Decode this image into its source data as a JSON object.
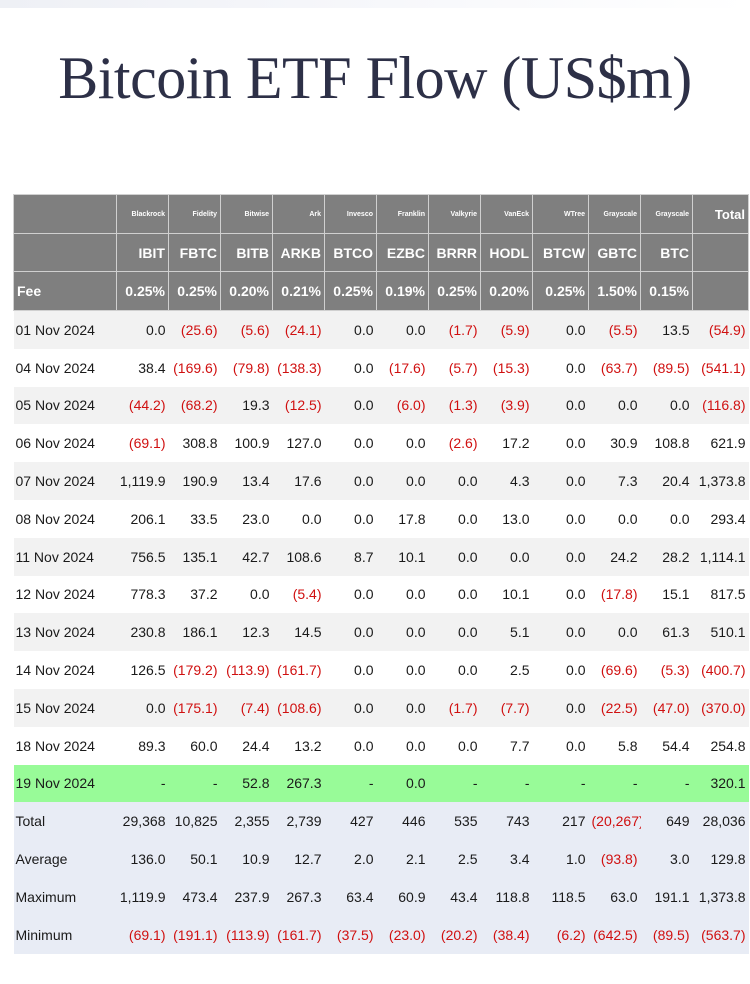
{
  "title": "Bitcoin ETF Flow (US$m)",
  "issuers": [
    "Blackrock",
    "Fidelity",
    "Bitwise",
    "Ark",
    "Invesco",
    "Franklin",
    "Valkyrie",
    "VanEck",
    "WTree",
    "Grayscale",
    "Grayscale"
  ],
  "total_header": "Total",
  "tickers": [
    "IBIT",
    "FBTC",
    "BITB",
    "ARKB",
    "BTCO",
    "EZBC",
    "BRRR",
    "HODL",
    "BTCW",
    "GBTC",
    "BTC"
  ],
  "fee_label": "Fee",
  "fees": [
    "0.25%",
    "0.25%",
    "0.20%",
    "0.21%",
    "0.25%",
    "0.19%",
    "0.25%",
    "0.20%",
    "0.25%",
    "1.50%",
    "0.15%"
  ],
  "rows": [
    {
      "label": "01 Nov 2024",
      "values": [
        "0.0",
        "(25.6)",
        "(5.6)",
        "(24.1)",
        "0.0",
        "0.0",
        "(1.7)",
        "(5.9)",
        "0.0",
        "(5.5)",
        "13.5",
        "(54.9)"
      ]
    },
    {
      "label": "04 Nov 2024",
      "values": [
        "38.4",
        "(169.6)",
        "(79.8)",
        "(138.3)",
        "0.0",
        "(17.6)",
        "(5.7)",
        "(15.3)",
        "0.0",
        "(63.7)",
        "(89.5)",
        "(541.1)"
      ]
    },
    {
      "label": "05 Nov 2024",
      "values": [
        "(44.2)",
        "(68.2)",
        "19.3",
        "(12.5)",
        "0.0",
        "(6.0)",
        "(1.3)",
        "(3.9)",
        "0.0",
        "0.0",
        "0.0",
        "(116.8)"
      ]
    },
    {
      "label": "06 Nov 2024",
      "values": [
        "(69.1)",
        "308.8",
        "100.9",
        "127.0",
        "0.0",
        "0.0",
        "(2.6)",
        "17.2",
        "0.0",
        "30.9",
        "108.8",
        "621.9"
      ]
    },
    {
      "label": "07 Nov 2024",
      "values": [
        "1,119.9",
        "190.9",
        "13.4",
        "17.6",
        "0.0",
        "0.0",
        "0.0",
        "4.3",
        "0.0",
        "7.3",
        "20.4",
        "1,373.8"
      ]
    },
    {
      "label": "08 Nov 2024",
      "values": [
        "206.1",
        "33.5",
        "23.0",
        "0.0",
        "0.0",
        "17.8",
        "0.0",
        "13.0",
        "0.0",
        "0.0",
        "0.0",
        "293.4"
      ]
    },
    {
      "label": "11 Nov 2024",
      "values": [
        "756.5",
        "135.1",
        "42.7",
        "108.6",
        "8.7",
        "10.1",
        "0.0",
        "0.0",
        "0.0",
        "24.2",
        "28.2",
        "1,114.1"
      ]
    },
    {
      "label": "12 Nov 2024",
      "values": [
        "778.3",
        "37.2",
        "0.0",
        "(5.4)",
        "0.0",
        "0.0",
        "0.0",
        "10.1",
        "0.0",
        "(17.8)",
        "15.1",
        "817.5"
      ]
    },
    {
      "label": "13 Nov 2024",
      "values": [
        "230.8",
        "186.1",
        "12.3",
        "14.5",
        "0.0",
        "0.0",
        "0.0",
        "5.1",
        "0.0",
        "0.0",
        "61.3",
        "510.1"
      ]
    },
    {
      "label": "14 Nov 2024",
      "values": [
        "126.5",
        "(179.2)",
        "(113.9)",
        "(161.7)",
        "0.0",
        "0.0",
        "0.0",
        "2.5",
        "0.0",
        "(69.6)",
        "(5.3)",
        "(400.7)"
      ]
    },
    {
      "label": "15 Nov 2024",
      "values": [
        "0.0",
        "(175.1)",
        "(7.4)",
        "(108.6)",
        "0.0",
        "0.0",
        "(1.7)",
        "(7.7)",
        "0.0",
        "(22.5)",
        "(47.0)",
        "(370.0)"
      ]
    },
    {
      "label": "18 Nov 2024",
      "values": [
        "89.3",
        "60.0",
        "24.4",
        "13.2",
        "0.0",
        "0.0",
        "0.0",
        "7.7",
        "0.0",
        "5.8",
        "54.4",
        "254.8"
      ]
    },
    {
      "label": "19 Nov 2024",
      "values": [
        "-",
        "-",
        "52.8",
        "267.3",
        "-",
        "0.0",
        "-",
        "-",
        "-",
        "-",
        "-",
        "320.1"
      ],
      "highlight": true
    }
  ],
  "stats": [
    {
      "label": "Total",
      "values": [
        "29,368",
        "10,825",
        "2,355",
        "2,739",
        "427",
        "446",
        "535",
        "743",
        "217",
        "(20,267)",
        "649",
        "28,036"
      ]
    },
    {
      "label": "Average",
      "values": [
        "136.0",
        "50.1",
        "10.9",
        "12.7",
        "2.0",
        "2.1",
        "2.5",
        "3.4",
        "1.0",
        "(93.8)",
        "3.0",
        "129.8"
      ]
    },
    {
      "label": "Maximum",
      "values": [
        "1,119.9",
        "473.4",
        "237.9",
        "267.3",
        "63.4",
        "60.9",
        "43.4",
        "118.8",
        "118.5",
        "63.0",
        "191.1",
        "1,373.8"
      ]
    },
    {
      "label": "Minimum",
      "values": [
        "(69.1)",
        "(191.1)",
        "(113.9)",
        "(161.7)",
        "(37.5)",
        "(23.0)",
        "(20.2)",
        "(38.4)",
        "(6.2)",
        "(642.5)",
        "(89.5)",
        "(563.7)"
      ]
    }
  ],
  "colors": {
    "header_bg": "#7f7f7f",
    "negative": "#d01010",
    "highlight_row": "#98fb98",
    "stats_bg": "#e8ecf5",
    "title": "#2d3047"
  }
}
